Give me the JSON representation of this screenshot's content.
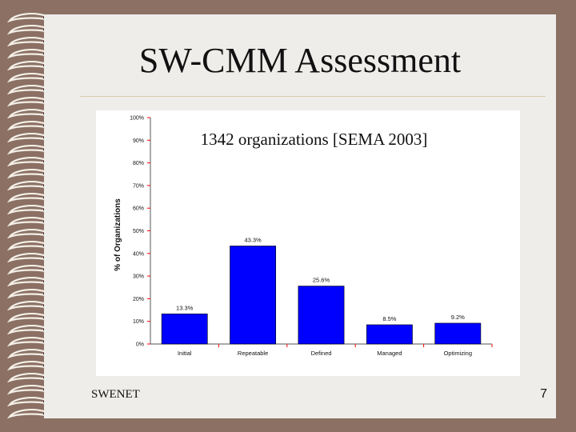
{
  "slide": {
    "title": "SW-CMM Assessment",
    "subtitle": "1342 organizations [SEMA 2003]",
    "footer_left": "SWENET",
    "page_number": "7"
  },
  "colors": {
    "background": "#8b7063",
    "panel": "#efedea",
    "bar": "#0000ff",
    "axis_tick": "#ff0000"
  },
  "chart_data": {
    "type": "bar",
    "categories": [
      "Initial",
      "Repeatable",
      "Defined",
      "Managed",
      "Optimizing"
    ],
    "values": [
      13.3,
      43.3,
      25.6,
      8.5,
      9.2
    ],
    "value_labels": [
      "13.3%",
      "43.3%",
      "25.6%",
      "8.5%",
      "9.2%"
    ],
    "ylabel": "% of Organizations",
    "xlabel": "",
    "ylim": [
      0,
      100
    ],
    "yticks": [
      0,
      10,
      20,
      30,
      40,
      50,
      60,
      70,
      80,
      90,
      100
    ],
    "ytick_labels": [
      "0%",
      "10%",
      "20%",
      "30%",
      "40%",
      "50%",
      "60%",
      "70%",
      "80%",
      "90%",
      "100%"
    ],
    "grid": false
  }
}
